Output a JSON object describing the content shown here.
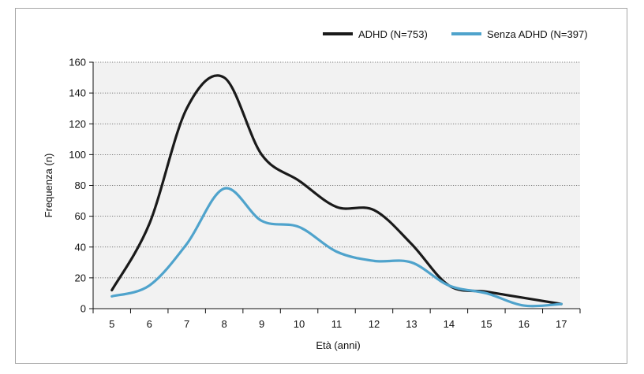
{
  "chart_data": {
    "type": "line",
    "title": "",
    "xlabel": "Età (anni)",
    "ylabel": "Frequenza (n)",
    "x": [
      5,
      6,
      7,
      8,
      9,
      10,
      11,
      12,
      13,
      14,
      15,
      16,
      17
    ],
    "xlim": [
      4.5,
      17.5
    ],
    "ylim": [
      0,
      160
    ],
    "yticks": [
      "0",
      "20",
      "40",
      "60",
      "80",
      "100",
      "120",
      "140",
      "160"
    ],
    "xticks": [
      "5",
      "6",
      "7",
      "8",
      "9",
      "10",
      "11",
      "12",
      "13",
      "14",
      "15",
      "16",
      "17"
    ],
    "grid": "horizontal-dotted",
    "legend_position": "top-right",
    "series": [
      {
        "name": "ADHD (N=753)",
        "color": "#1a1a1a",
        "values": [
          12,
          55,
          130,
          150,
          100,
          83,
          66,
          64,
          42,
          15,
          11,
          7,
          3
        ]
      },
      {
        "name": "Senza ADHD (N=397)",
        "color": "#4fa3cc",
        "values": [
          8,
          15,
          42,
          78,
          57,
          53,
          37,
          31,
          30,
          15,
          10,
          2,
          3
        ]
      }
    ]
  }
}
